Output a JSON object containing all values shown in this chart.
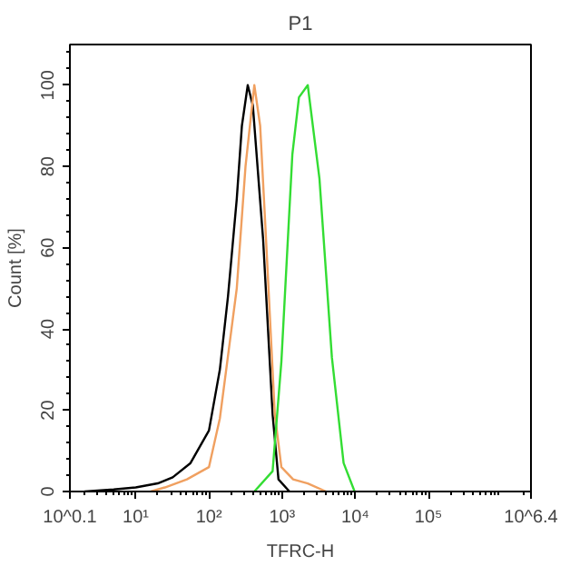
{
  "chart_data": {
    "type": "line",
    "title": "P1",
    "xlabel": "TFRC-H",
    "ylabel": "Count [%]",
    "log": "x",
    "xlim": [
      1.2589,
      2511886
    ],
    "ylim": [
      0,
      110
    ],
    "xticks": [
      {
        "value": 1.2589,
        "label": "10^0.1"
      },
      {
        "value": 10,
        "label": "10¹"
      },
      {
        "value": 100,
        "label": "10²"
      },
      {
        "value": 1000,
        "label": "10³"
      },
      {
        "value": 10000,
        "label": "10⁴"
      },
      {
        "value": 100000,
        "label": "10⁵"
      },
      {
        "value": 2511886,
        "label": "10^6.4"
      }
    ],
    "yticks": [
      0,
      20,
      40,
      60,
      80,
      100
    ],
    "grid": false,
    "marker": "none",
    "line_style": "solid",
    "series": [
      {
        "color": "#000000",
        "x": [
          2.0,
          5.0,
          10,
          20,
          32,
          56,
          100,
          141,
          182,
          240,
          282,
          339,
          398,
          550,
          741,
          891,
          1259
        ],
        "values": [
          0,
          0.5,
          1,
          2,
          3.5,
          7,
          15,
          30,
          48,
          72,
          90,
          100,
          95,
          62,
          19,
          3,
          0
        ]
      },
      {
        "color": "#f0a060",
        "x": [
          16,
          25,
          50,
          100,
          141,
          178,
          240,
          316,
          417,
          501,
          603,
          794,
          977,
          1413,
          2239,
          3981
        ],
        "values": [
          0,
          1,
          3,
          6,
          18,
          32,
          50,
          80,
          100,
          90,
          62,
          19,
          6,
          3,
          2,
          0
        ]
      },
      {
        "color": "#33dd33",
        "x": [
          417,
          741,
          977,
          1380,
          1698,
          2239,
          3236,
          4786,
          6918,
          9772
        ],
        "values": [
          0,
          5,
          32,
          83,
          97,
          100,
          77,
          33,
          7,
          0
        ]
      }
    ]
  }
}
